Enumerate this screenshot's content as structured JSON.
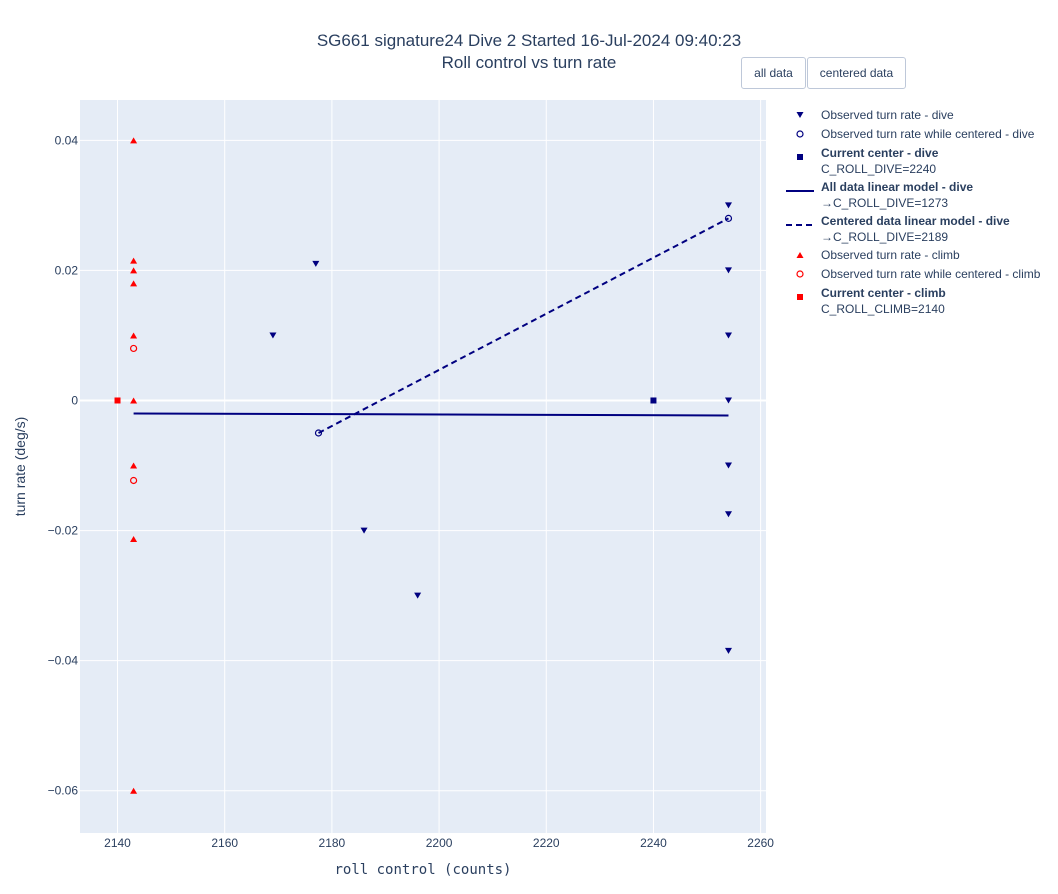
{
  "title": {
    "line1": "SG661 signature24 Dive 2 Started 16-Jul-2024 09:40:23",
    "line2": "Roll control vs turn rate"
  },
  "buttons": {
    "all_data": "all data",
    "centered_data": "centered data"
  },
  "colors": {
    "dive": "#000080",
    "climb": "#ff0000",
    "plot_bg": "#e5ecf6",
    "grid": "#ffffff"
  },
  "chart_data": {
    "type": "scatter",
    "xlabel": "roll control (counts)",
    "ylabel": "turn rate (deg/s)",
    "xlim": [
      2133,
      2261
    ],
    "ylim": [
      -0.0665,
      0.0462
    ],
    "x_ticks": [
      2140,
      2160,
      2180,
      2200,
      2220,
      2240,
      2260
    ],
    "x_tick_labels": [
      "2140",
      "2160",
      "2180",
      "2200",
      "2220",
      "2240",
      "2260"
    ],
    "y_ticks": [
      0.04,
      0.02,
      0,
      -0.02,
      -0.04,
      -0.06
    ],
    "y_tick_labels": [
      "0.04",
      "0.02",
      "0",
      "−0.02",
      "−0.04",
      "−0.06"
    ],
    "legend": [
      {
        "name": "Observed turn rate - dive",
        "sub": "",
        "marker": "triangle-down",
        "color": "#000080",
        "bold": false
      },
      {
        "name": "Observed turn rate while centered - dive",
        "sub": "",
        "marker": "circle-open",
        "color": "#000080",
        "bold": false
      },
      {
        "name": "Current center - dive",
        "sub": "C_ROLL_DIVE=2240",
        "marker": "square",
        "color": "#000080",
        "bold": true
      },
      {
        "name": "All data linear model - dive",
        "sub": "→C_ROLL_DIVE=1273",
        "marker": "line-solid",
        "color": "#000080",
        "bold": true
      },
      {
        "name": "Centered data linear model - dive",
        "sub": "→C_ROLL_DIVE=2189",
        "marker": "line-dash",
        "color": "#000080",
        "bold": true
      },
      {
        "name": "Observed turn rate - climb",
        "sub": "",
        "marker": "triangle-up",
        "color": "#ff0000",
        "bold": false
      },
      {
        "name": "Observed turn rate while centered - climb",
        "sub": "",
        "marker": "circle-open",
        "color": "#ff0000",
        "bold": false
      },
      {
        "name": "Current center - climb",
        "sub": "C_ROLL_CLIMB=2140",
        "marker": "square",
        "color": "#ff0000",
        "bold": true
      }
    ],
    "series": [
      {
        "id": "obs-dive",
        "marker": "triangle-down",
        "color": "#000080",
        "points": [
          [
            2169,
            0.01
          ],
          [
            2177,
            0.021
          ],
          [
            2186,
            -0.02
          ],
          [
            2196,
            -0.03
          ],
          [
            2254,
            0.03
          ],
          [
            2254,
            0.02
          ],
          [
            2254,
            0.01
          ],
          [
            2254,
            0
          ],
          [
            2254,
            -0.01
          ],
          [
            2254,
            -0.0175
          ],
          [
            2254,
            -0.0385
          ]
        ]
      },
      {
        "id": "centered-dive",
        "marker": "circle-open",
        "color": "#000080",
        "points": [
          [
            2177.5,
            -0.005
          ],
          [
            2254,
            0.028
          ]
        ]
      },
      {
        "id": "center-dive",
        "marker": "square",
        "color": "#000080",
        "points": [
          [
            2240,
            0
          ]
        ]
      },
      {
        "id": "model-all-dive",
        "marker": "line-solid",
        "color": "#000080",
        "points": [
          [
            2143,
            -0.002
          ],
          [
            2254,
            -0.0023
          ]
        ]
      },
      {
        "id": "model-centered-dive",
        "marker": "line-dash",
        "color": "#000080",
        "points": [
          [
            2177.5,
            -0.005
          ],
          [
            2254,
            0.028
          ]
        ]
      },
      {
        "id": "obs-climb",
        "marker": "triangle-up",
        "color": "#ff0000",
        "points": [
          [
            2143,
            0.04
          ],
          [
            2143,
            0.0215
          ],
          [
            2143,
            0.02
          ],
          [
            2143,
            0.018
          ],
          [
            2143,
            0.01
          ],
          [
            2143,
            0
          ],
          [
            2143,
            -0.01
          ],
          [
            2143,
            -0.0213
          ],
          [
            2143,
            -0.06
          ]
        ]
      },
      {
        "id": "centered-climb",
        "marker": "circle-open",
        "color": "#ff0000",
        "points": [
          [
            2143,
            0.008
          ],
          [
            2143,
            -0.0123
          ]
        ]
      },
      {
        "id": "center-climb",
        "marker": "square",
        "color": "#ff0000",
        "points": [
          [
            2140,
            0
          ]
        ]
      }
    ]
  }
}
